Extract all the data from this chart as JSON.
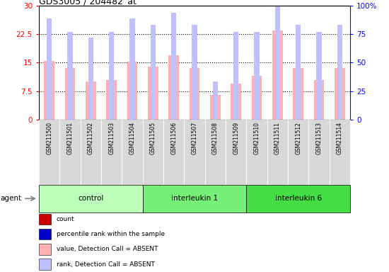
{
  "title": "GDS3005 / 204482_at",
  "samples": [
    "GSM211500",
    "GSM211501",
    "GSM211502",
    "GSM211503",
    "GSM211504",
    "GSM211505",
    "GSM211506",
    "GSM211507",
    "GSM211508",
    "GSM211509",
    "GSM211510",
    "GSM211511",
    "GSM211512",
    "GSM211513",
    "GSM211514"
  ],
  "values": [
    15.5,
    13.5,
    10.0,
    10.5,
    15.2,
    14.0,
    17.0,
    13.5,
    6.5,
    9.5,
    11.5,
    23.5,
    13.5,
    10.5,
    13.5
  ],
  "ranks": [
    26.5,
    23.0,
    21.5,
    23.0,
    26.5,
    25.0,
    28.0,
    25.0,
    10.0,
    23.0,
    23.0,
    33.0,
    25.0,
    23.0,
    25.0
  ],
  "absent": [
    true,
    true,
    true,
    true,
    true,
    true,
    true,
    true,
    true,
    true,
    true,
    true,
    true,
    true,
    true
  ],
  "groups": [
    {
      "label": "control",
      "start": 0,
      "end": 5,
      "color": "#bbffbb"
    },
    {
      "label": "interleukin 1",
      "start": 5,
      "end": 10,
      "color": "#77ee77"
    },
    {
      "label": "interleukin 6",
      "start": 10,
      "end": 15,
      "color": "#44dd44"
    }
  ],
  "ylim_left": [
    0,
    30
  ],
  "ylim_right": [
    0,
    100
  ],
  "yticks_left": [
    0,
    7.5,
    15,
    22.5,
    30
  ],
  "yticks_right": [
    0,
    25,
    50,
    75,
    100
  ],
  "bar_color_absent": "#ffb0b0",
  "rank_color_absent": "#c0c0ff",
  "bar_width": 0.5,
  "rank_bar_width": 0.25,
  "agent_label": "agent",
  "legend_items": [
    {
      "color": "#cc0000",
      "label": "count"
    },
    {
      "color": "#0000cc",
      "label": "percentile rank within the sample"
    },
    {
      "color": "#ffb0b0",
      "label": "value, Detection Call = ABSENT"
    },
    {
      "color": "#c0c0ff",
      "label": "rank, Detection Call = ABSENT"
    }
  ]
}
